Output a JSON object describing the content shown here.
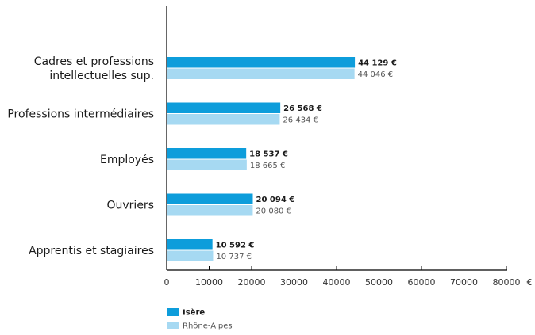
{
  "chart_data": {
    "type": "bar",
    "orientation": "horizontal",
    "categories": [
      [
        "Cadres et professions",
        "intellectuelles sup."
      ],
      [
        "Professions intermédiaires"
      ],
      [
        "Employés"
      ],
      [
        "Ouvriers"
      ],
      [
        "Apprentis et stagiaires"
      ]
    ],
    "series": [
      {
        "name": "Isère",
        "color": "#0d9ddb",
        "values": [
          44129,
          26568,
          18537,
          20094,
          10592
        ],
        "labels": [
          "44 129 €",
          "26 568 €",
          "18 537 €",
          "20 094 €",
          "10 592 €"
        ]
      },
      {
        "name": "Rhône-Alpes",
        "color": "#a6d9f2",
        "values": [
          44046,
          26434,
          18665,
          20080,
          10737
        ],
        "labels": [
          "44 046 €",
          "26 434 €",
          "18 665 €",
          "20 080 €",
          "10 737 €"
        ]
      }
    ],
    "xlim": [
      0,
      80000
    ],
    "xticks": [
      0,
      10000,
      20000,
      30000,
      40000,
      50000,
      60000,
      70000,
      80000
    ],
    "xtick_labels": [
      "0",
      "10000",
      "20000",
      "30000",
      "40000",
      "50000",
      "60000",
      "70000",
      "80000"
    ],
    "unit": "€",
    "legend_position": "bottom-left",
    "grid": false
  }
}
